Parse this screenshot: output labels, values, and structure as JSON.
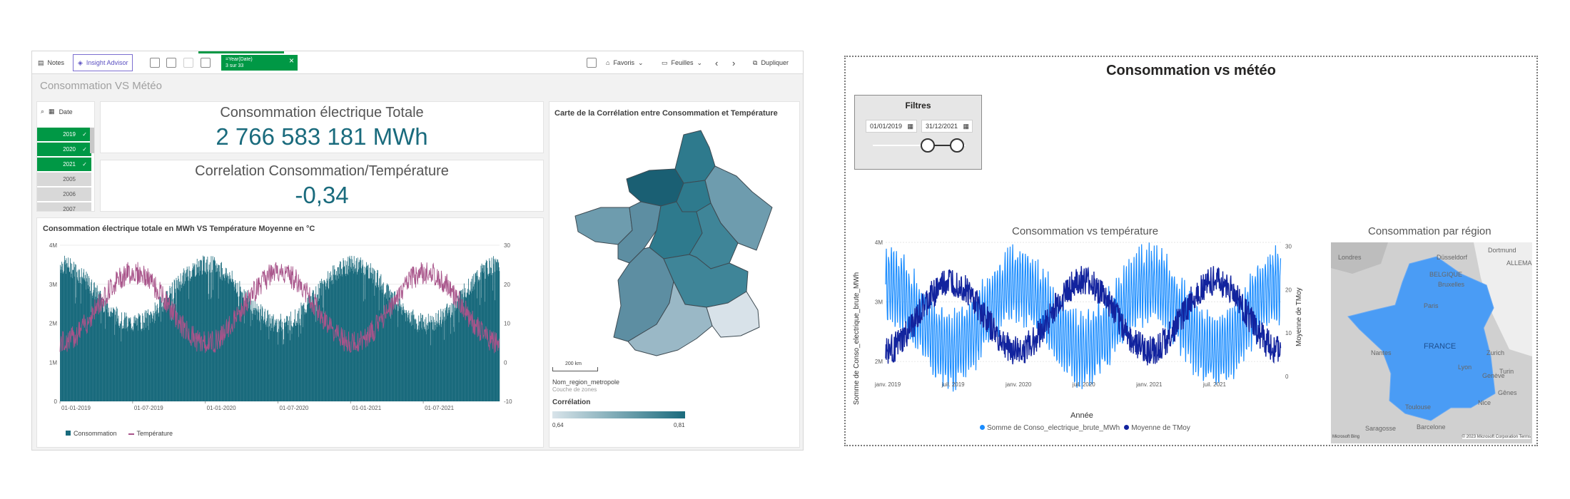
{
  "qlik": {
    "toolbar": {
      "notes": "Notes",
      "insight": "Insight Advisor",
      "chip_title": "=Year(Date)",
      "chip_sub": "3 sur 33",
      "bookmarks": "Favoris",
      "sheets": "Feuilles",
      "duplicate": "Dupliquer"
    },
    "sheet_title": "Consommation VS Météo",
    "filter": {
      "label": "Date",
      "years": [
        {
          "label": "2019",
          "selected": true
        },
        {
          "label": "2020",
          "selected": true
        },
        {
          "label": "2021",
          "selected": true
        },
        {
          "label": "2005",
          "selected": false
        },
        {
          "label": "2006",
          "selected": false
        },
        {
          "label": "2007",
          "selected": false
        }
      ]
    },
    "kpi1": {
      "title": "Consommation électrique Totale",
      "value": "2 766 583 181 MWh"
    },
    "kpi2": {
      "title": "Correlation Consommation/Température",
      "value": "-0,34"
    },
    "combo": {
      "title": "Consommation électrique totale en MWh VS Température Moyenne en °C",
      "legend_bar": "Consommation",
      "legend_line": "Température",
      "bar_color": "#1a6b7d",
      "line_color": "#a8548a"
    },
    "map": {
      "title": "Carte de la Corrélation entre Consommation et Température",
      "scale": "200 km",
      "layer_name": "Nom_region_metropole",
      "layer_type": "Couche de zones",
      "legend_title": "Corrélation",
      "legend_min": "0,64",
      "legend_max": "0,81"
    }
  },
  "pbi": {
    "title": "Consommation vs météo",
    "filter": {
      "title": "Filtres",
      "start": "01/01/2019",
      "end": "31/12/2021",
      "range_start_fraction": 0.59,
      "range_end_fraction": 0.91
    },
    "line_chart": {
      "title": "Consommation vs température",
      "xlabel": "Année",
      "ylabel_left": "Somme de Conso_electrique_brute_MWh",
      "ylabel_right": "Moyenne de TMoy",
      "legend_1": "Somme de Conso_electrique_brute_MWh",
      "legend_2": "Moyenne de TMoy",
      "color_1": "#1a8cff",
      "color_2": "#12239e"
    },
    "map": {
      "title": "Consommation par région",
      "country": "FRANCE",
      "credit": "© 2023 Microsoft Corporation  Terms",
      "brand": "Microsoft Bing",
      "fill": "#4a9cf5",
      "labels": [
        "Dortmund",
        "Düsseldorf",
        "ALLEMA",
        "BELGIQUE",
        "Bruxelles",
        "Londres",
        "Paris",
        "Zurich",
        "Genève",
        "Turin",
        "Gênes",
        "Saragosse",
        "Barcelone",
        "Toulouse",
        "Lyon",
        "Nantes",
        "Nice"
      ]
    }
  },
  "chart_data": [
    {
      "type": "bar",
      "title": "Consommation électrique totale en MWh VS Température Moyenne en °C",
      "x_ticks": [
        "01-01-2019",
        "01-07-2019",
        "01-01-2020",
        "01-07-2020",
        "01-01-2021",
        "01-07-2021"
      ],
      "y_left_ticks": [
        "0",
        "1M",
        "2M",
        "3M",
        "4M"
      ],
      "y_right_ticks": [
        "-10",
        "0",
        "10",
        "20",
        "30"
      ],
      "ylim_left": [
        0,
        4000000
      ],
      "ylim_right": [
        -10,
        30
      ],
      "series": [
        {
          "name": "Consommation",
          "kind": "bar",
          "pattern": "daily, ~2.0M summer to ~3.6M winter"
        },
        {
          "name": "Température",
          "kind": "line",
          "pattern": "daily, ~5 winter to ~25 summer"
        }
      ]
    },
    {
      "type": "line",
      "title": "Consommation vs température",
      "x_ticks": [
        "janv. 2019",
        "juil. 2019",
        "janv. 2020",
        "juil. 2020",
        "janv. 2021",
        "juil. 2021"
      ],
      "y_left_ticks": [
        "2M",
        "3M",
        "4M"
      ],
      "y_right_ticks": [
        "0",
        "10",
        "20",
        "30"
      ],
      "xlabel": "Année",
      "ylabel": "Somme de Conso_electrique_brute_MWh",
      "ylabel_right": "Moyenne de TMoy"
    }
  ]
}
